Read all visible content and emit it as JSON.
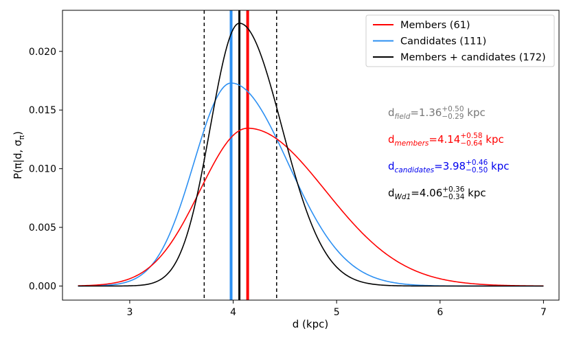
{
  "chart_data": {
    "type": "line",
    "xlabel": "d (kpc)",
    "ylabel": "P(π|d, σ",
    "ylabel_sub": "π",
    "ylabel_close": ")",
    "xlim": [
      2.35,
      7.15
    ],
    "ylim": [
      -0.0012,
      0.0235
    ],
    "xticks": [
      3,
      4,
      5,
      6,
      7
    ],
    "yticks": [
      0.0,
      0.005,
      0.01,
      0.015,
      0.02
    ],
    "ytick_labels": [
      "0.000",
      "0.005",
      "0.010",
      "0.015",
      "0.020"
    ],
    "x_domain": [
      2.5,
      7.0
    ],
    "series": [
      {
        "name": "Members (61)",
        "color": "#ff0000",
        "distribution": "skewed",
        "peak_x": 4.14,
        "peak_y": 0.01345,
        "sigma_left": 0.46,
        "sigma_right": 0.75
      },
      {
        "name": "Candidates (111)",
        "color": "#2b8ff2",
        "distribution": "skewed",
        "peak_x": 3.98,
        "peak_y": 0.0173,
        "sigma_left": 0.36,
        "sigma_right": 0.55
      },
      {
        "name": "Members + candidates (172)",
        "color": "#000000",
        "distribution": "skewed",
        "peak_x": 4.06,
        "peak_y": 0.0224,
        "sigma_left": 0.28,
        "sigma_right": 0.41
      }
    ],
    "vertical_lines": [
      {
        "x": 3.72,
        "style": "dashed",
        "color": "#000000",
        "width": 1.5
      },
      {
        "x": 4.42,
        "style": "dashed",
        "color": "#000000",
        "width": 1.5
      },
      {
        "x": 3.98,
        "style": "solid",
        "color": "#2b8ff2",
        "width": 4
      },
      {
        "x": 4.06,
        "style": "solid",
        "color": "#000000",
        "width": 3
      },
      {
        "x": 4.14,
        "style": "solid",
        "color": "#ff0000",
        "width": 4
      }
    ],
    "legend": {
      "location": "upper right",
      "entries": [
        "Members (61)",
        "Candidates (111)",
        "Members + candidates (172)"
      ]
    },
    "annotations": [
      {
        "base": "d",
        "sub": "field",
        "value": "=1.36",
        "sup": "+0.50",
        "low": "−0.29",
        "unit": " kpc",
        "color": "#777777"
      },
      {
        "base": "d",
        "sub": "members",
        "value": "=4.14",
        "sup": "+0.58",
        "low": "−0.64",
        "unit": " kpc",
        "color": "#ff0000"
      },
      {
        "base": "d",
        "sub": "candidates",
        "value": "=3.98",
        "sup": "+0.46",
        "low": "−0.50",
        "unit": " kpc",
        "color": "#0000ee"
      },
      {
        "base": "d",
        "sub": "Wd1",
        "value": "=4.06",
        "sup": "+0.36",
        "low": "−0.34",
        "unit": " kpc",
        "color": "#000000"
      }
    ]
  }
}
